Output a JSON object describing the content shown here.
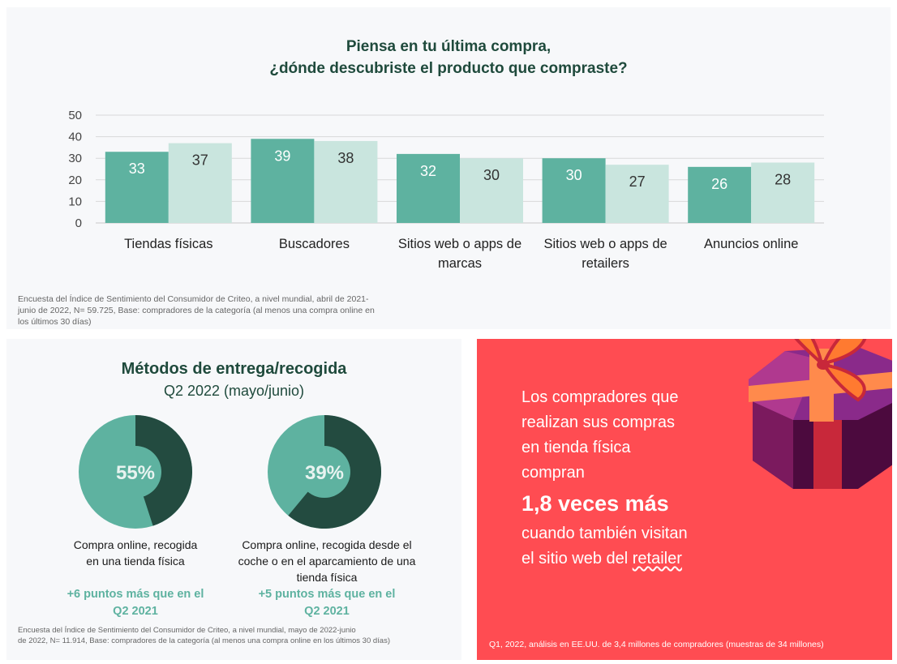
{
  "top_chart": {
    "title_line1": "Piensa en tu última compra,",
    "title_line2": "¿dónde descubriste el producto que compraste?",
    "note_lines": [
      "Encuesta del Índice de Sentimiento del Consumidor de Criteo, a nivel mundial, abril de 2021-",
      "junio de 2022, N= 59.725, Base: compradores de la categoría (al menos una compra online en",
      "los últimos 30 días)"
    ]
  },
  "chart_data": {
    "type": "bar",
    "categories": [
      [
        "Tiendas físicas"
      ],
      [
        "Buscadores"
      ],
      [
        "Sitios web o apps de",
        "marcas"
      ],
      [
        "Sitios web o apps de",
        "retailers"
      ],
      [
        "Anuncios online"
      ]
    ],
    "series": [
      {
        "values": [
          33,
          39,
          32,
          30,
          26
        ],
        "color": "#5eb2a0"
      },
      {
        "values": [
          37,
          38,
          30,
          27,
          28
        ],
        "color": "#c9e5de"
      }
    ],
    "ylim": [
      0,
      50
    ],
    "yticks": [
      0,
      10,
      20,
      30,
      40,
      50
    ],
    "grid": true,
    "legend": "none"
  },
  "delivery": {
    "title": "Métodos de entrega/recogida",
    "subtitle": "Q2 2022 (mayo/junio)",
    "donuts": [
      {
        "value": 55,
        "label_text": "55%",
        "caption_lines": [
          "Compra online, recogida",
          "en una tienda física"
        ],
        "delta_lines": [
          "+6 puntos más que en el",
          "Q2 2021"
        ]
      },
      {
        "value": 39,
        "label_text": "39%",
        "caption_lines": [
          "Compra online, recogida desde el",
          "coche o en el aparcamiento de una",
          "tienda física"
        ],
        "delta_lines": [
          "+5 puntos más que en el",
          "Q2 2021"
        ]
      }
    ],
    "colors": {
      "filled": "#5eb2a0",
      "rest": "#234b40"
    },
    "note_lines": [
      "Encuesta del Índice de Sentimiento del Consumidor de Criteo, a nivel mundial, mayo de 2022-junio",
      "de 2022, N= 11.914, Base: compradores de la categoría (al menos una compra online en los últimos 30 días)"
    ]
  },
  "promo": {
    "lines": [
      "Los compradores que",
      "realizan sus compras",
      "en tienda física",
      "compran"
    ],
    "highlight": "1,8 veces más",
    "after_lines": [
      "cuando también visitan"
    ],
    "last_line_prefix": "el sitio web del ",
    "last_line_word": "retailer",
    "note": "Q1, 2022, análisis en EE.UU. de 3,4 millones de compradores (muestras de 34 millones)",
    "background": "#ff4c52",
    "icon": "gift-box-icon"
  }
}
